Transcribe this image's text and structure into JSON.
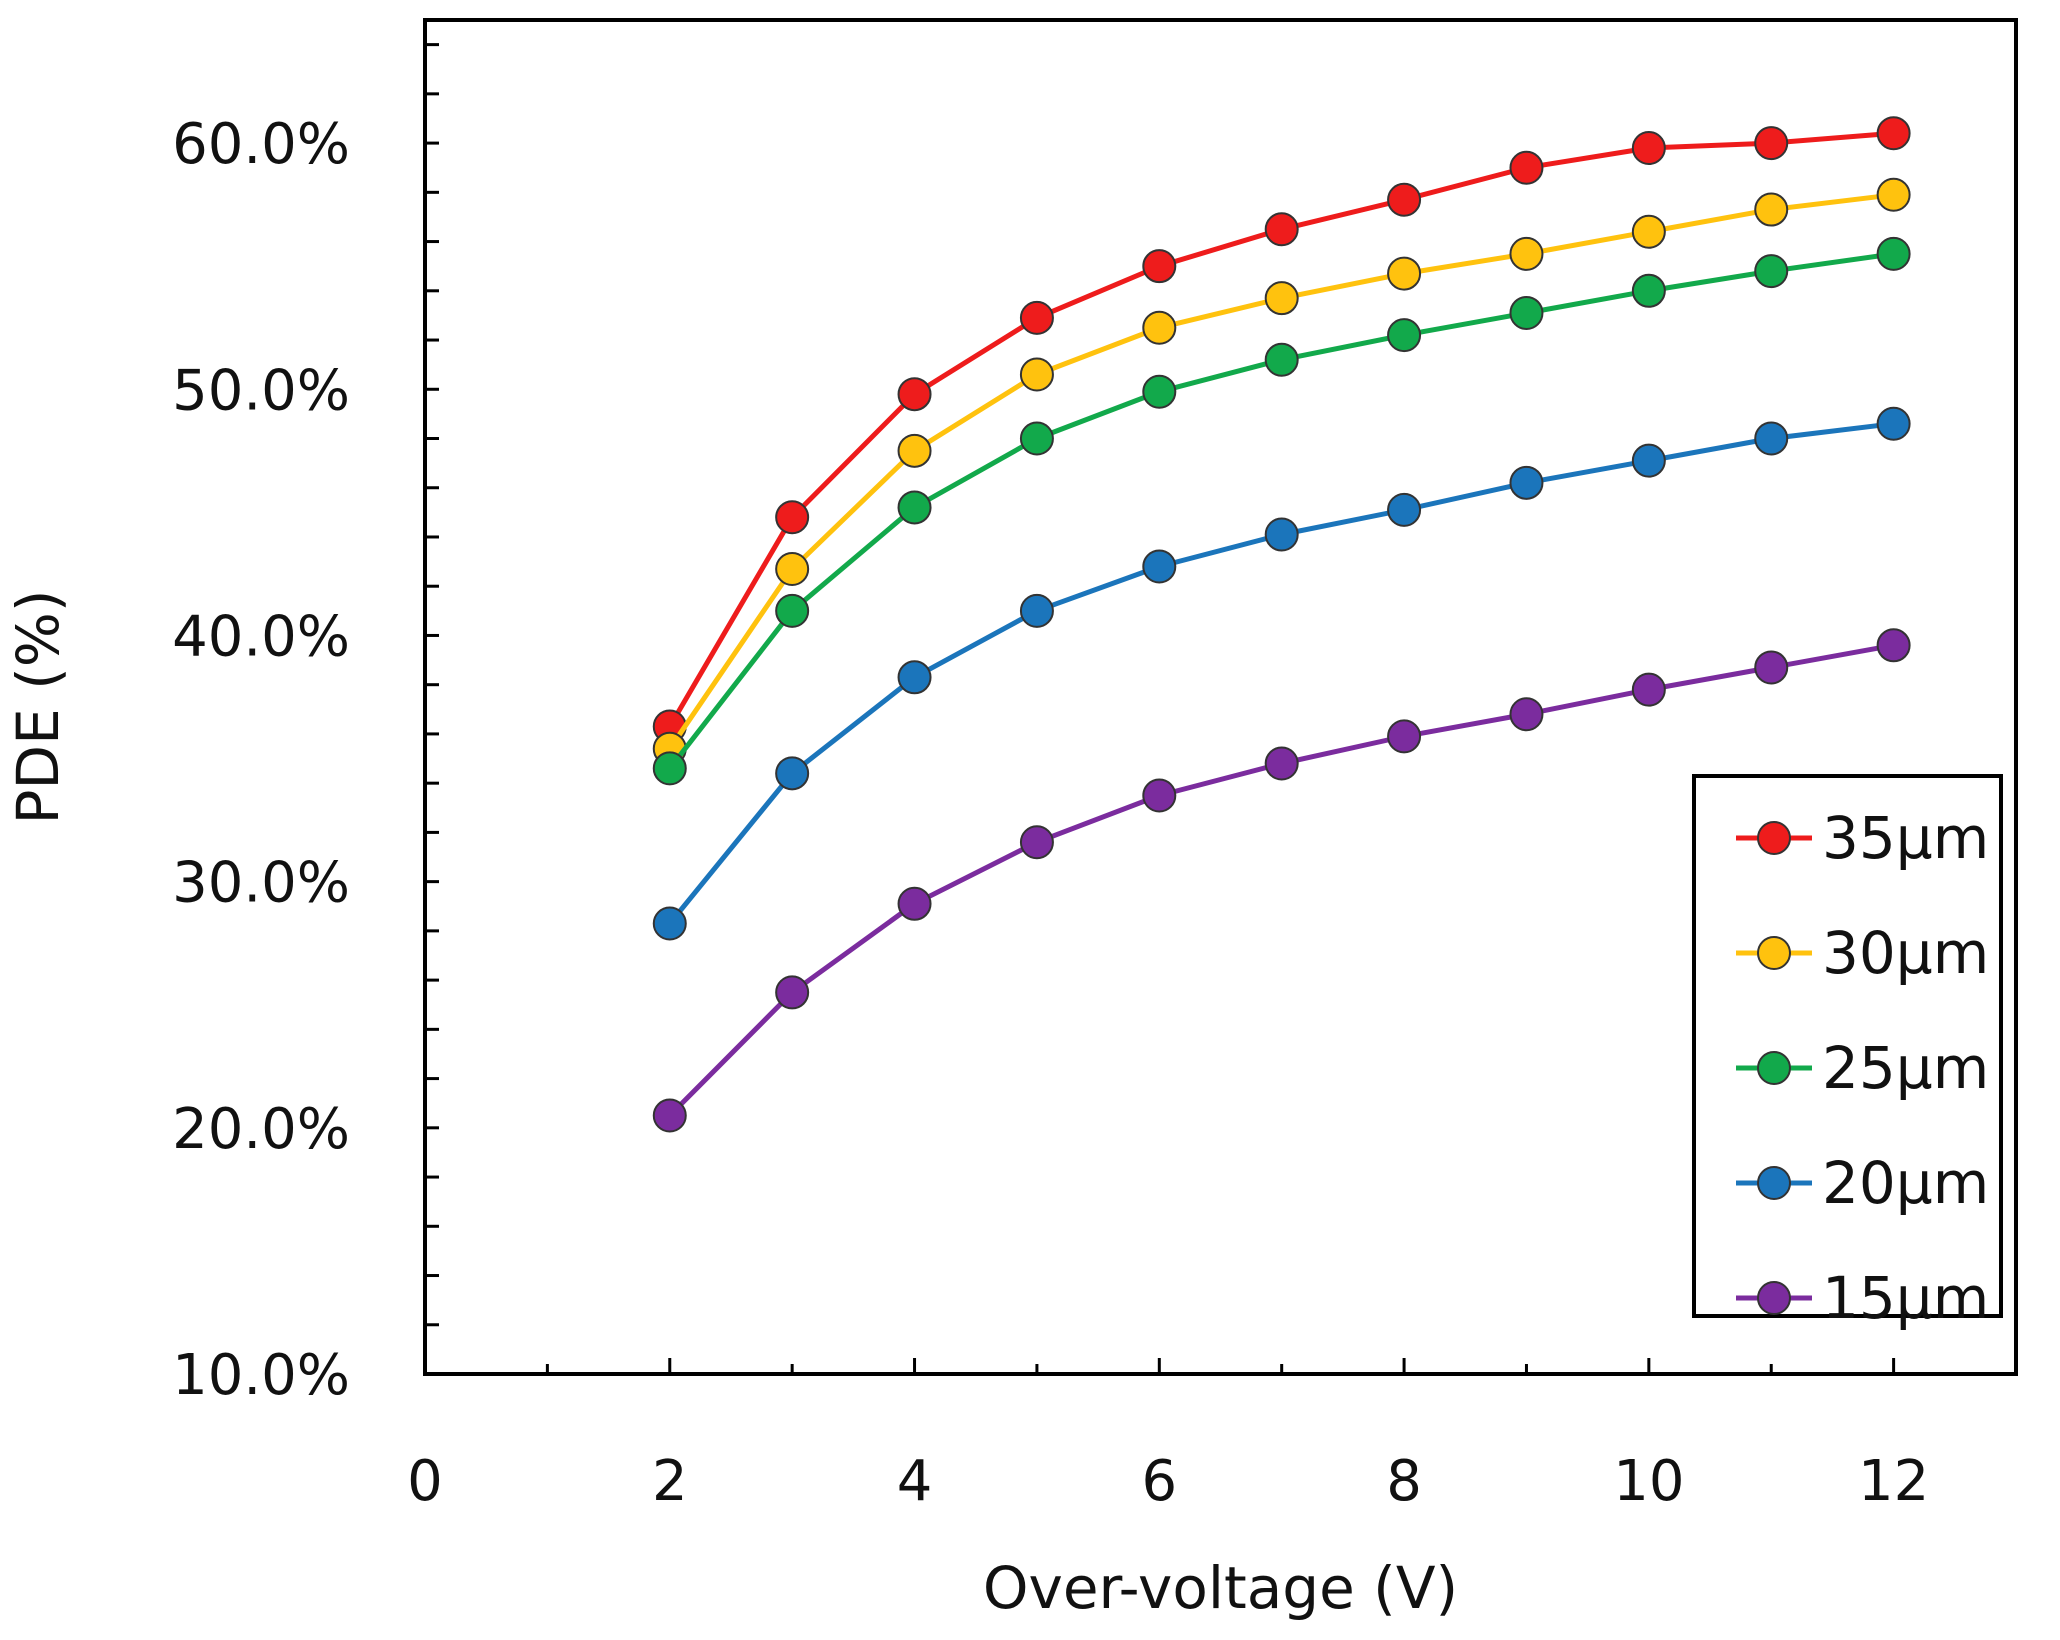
{
  "chart_data": {
    "type": "line",
    "title": "",
    "xlabel": "Over-voltage (V)",
    "ylabel": "PDE (%)",
    "xlim": [
      0,
      13
    ],
    "ylim": [
      0.1,
      0.65
    ],
    "x_ticks": [
      0,
      2,
      4,
      6,
      8,
      10,
      12
    ],
    "x_tick_labels": [
      "0",
      "2",
      "4",
      "6",
      "8",
      "10",
      "12"
    ],
    "y_ticks": [
      0.1,
      0.2,
      0.3,
      0.4,
      0.5,
      0.6
    ],
    "y_tick_labels": [
      "10.0%",
      "20.0%",
      "30.0%",
      "40.0%",
      "50.0%",
      "60.0%"
    ],
    "y_minor_step": 0.02,
    "grid": false,
    "legend_position": "bottom-right",
    "x": [
      2,
      3,
      4,
      5,
      6,
      7,
      8,
      9,
      10,
      11,
      12
    ],
    "series": [
      {
        "name": "35μm",
        "color": "#ee1c1c",
        "values": [
          0.363,
          0.448,
          0.498,
          0.529,
          0.55,
          0.565,
          0.577,
          0.59,
          0.598,
          0.6,
          0.604
        ]
      },
      {
        "name": "30μm",
        "color": "#ffc20e",
        "values": [
          0.354,
          0.427,
          0.475,
          0.506,
          0.525,
          0.537,
          0.547,
          0.555,
          0.564,
          0.573,
          0.579
        ]
      },
      {
        "name": "25μm",
        "color": "#12a94b",
        "values": [
          0.346,
          0.41,
          0.452,
          0.48,
          0.499,
          0.512,
          0.522,
          0.531,
          0.54,
          0.548,
          0.555
        ]
      },
      {
        "name": "20μm",
        "color": "#1b75bb",
        "values": [
          0.283,
          0.344,
          0.383,
          0.41,
          0.428,
          0.441,
          0.451,
          0.462,
          0.471,
          0.48,
          0.486
        ]
      },
      {
        "name": "15μm",
        "color": "#7b2c9e",
        "values": [
          0.205,
          0.255,
          0.291,
          0.316,
          0.335,
          0.348,
          0.359,
          0.368,
          0.378,
          0.387,
          0.396
        ]
      }
    ]
  }
}
